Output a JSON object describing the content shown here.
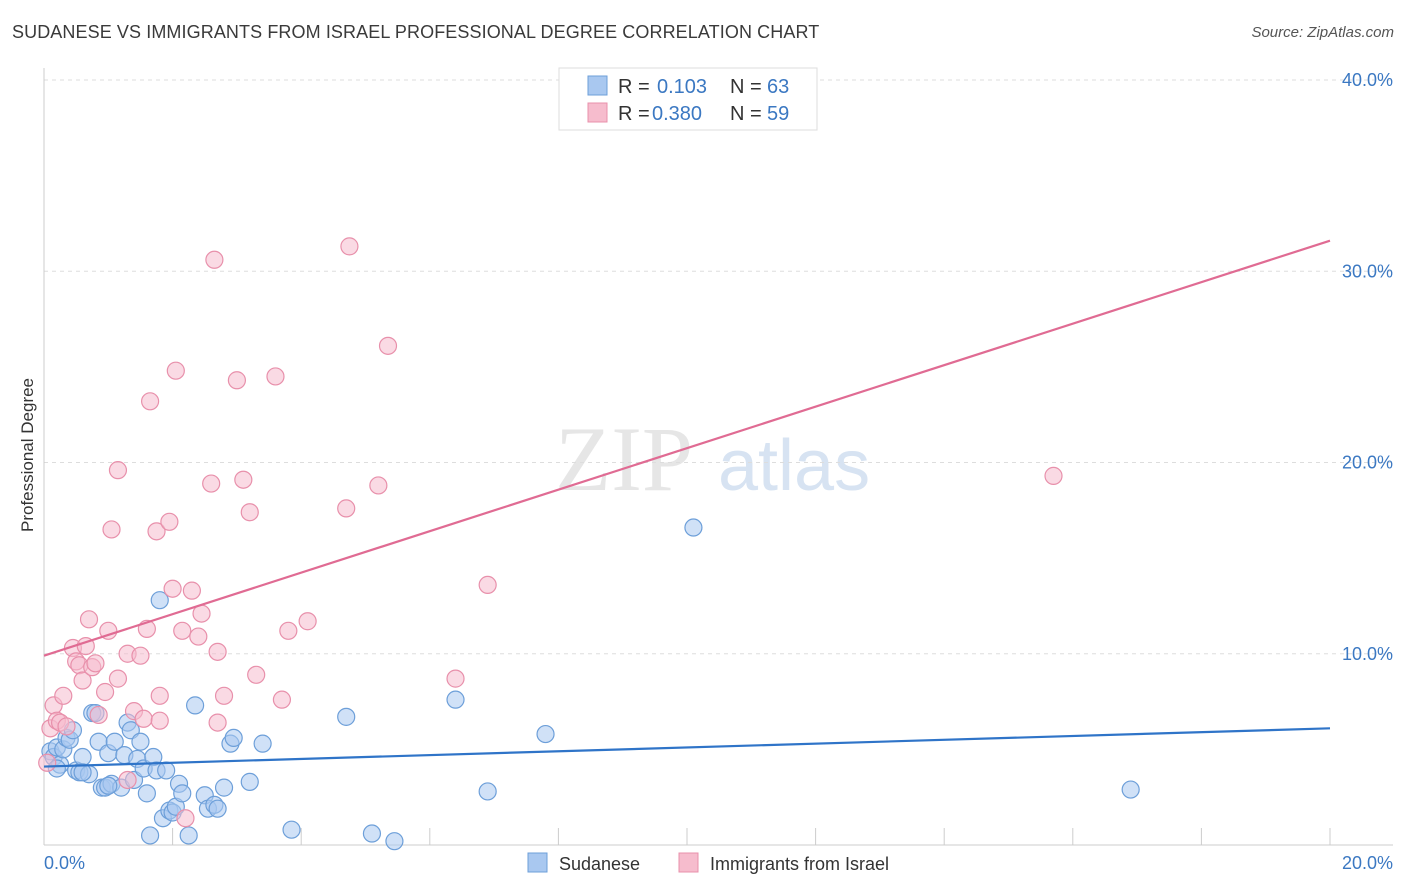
{
  "header": {
    "title": "SUDANESE VS IMMIGRANTS FROM ISRAEL PROFESSIONAL DEGREE CORRELATION CHART",
    "source": "Source: ZipAtlas.com"
  },
  "watermark": {
    "zip": "ZIP",
    "atlas": "atlas"
  },
  "legend_top": {
    "r_label": "R =",
    "n_label": "N =",
    "rows": [
      {
        "r": "0.103",
        "n": "63"
      },
      {
        "r": "0.380",
        "n": "59"
      }
    ]
  },
  "colors": {
    "blue_fill": "#a9c8f0",
    "blue_stroke": "#6d9fd9",
    "blue_line": "#2f74c8",
    "pink_fill": "#f6bccd",
    "pink_stroke": "#e890ab",
    "pink_line": "#e06b93",
    "tick_text": "#3b78c2",
    "grid": "#dddddd"
  },
  "chart_data": {
    "type": "scatter",
    "title": "SUDANESE VS IMMIGRANTS FROM ISRAEL PROFESSIONAL DEGREE CORRELATION CHART",
    "xlabel": "",
    "ylabel": "Professional Degree",
    "xlim": [
      0,
      20
    ],
    "ylim": [
      0,
      40
    ],
    "x_tick_labels": [
      "0.0%",
      "20.0%"
    ],
    "y_ticks": [
      10,
      20,
      30,
      40
    ],
    "y_tick_labels": [
      "10.0%",
      "20.0%",
      "30.0%",
      "40.0%"
    ],
    "grid": true,
    "legend_placement": "top-center",
    "series": [
      {
        "name": "Sudanese",
        "color": "#6d9fd9",
        "r": 0.103,
        "n": 63,
        "trend": {
          "x": [
            0,
            20
          ],
          "y": [
            4.1,
            6.1
          ]
        },
        "points": [
          [
            0.1,
            4.9
          ],
          [
            0.15,
            4.6
          ],
          [
            0.2,
            5.1
          ],
          [
            0.25,
            4.2
          ],
          [
            0.3,
            5.0
          ],
          [
            0.35,
            5.6
          ],
          [
            0.4,
            5.5
          ],
          [
            0.45,
            6.0
          ],
          [
            0.5,
            3.9
          ],
          [
            0.55,
            3.8
          ],
          [
            0.6,
            4.6
          ],
          [
            0.7,
            3.7
          ],
          [
            0.75,
            6.9
          ],
          [
            0.8,
            6.9
          ],
          [
            0.85,
            5.4
          ],
          [
            0.9,
            3.0
          ],
          [
            0.95,
            3.0
          ],
          [
            1.0,
            4.8
          ],
          [
            1.05,
            3.2
          ],
          [
            1.1,
            5.4
          ],
          [
            1.2,
            3.0
          ],
          [
            1.25,
            4.7
          ],
          [
            1.3,
            6.4
          ],
          [
            1.35,
            6.0
          ],
          [
            1.4,
            3.4
          ],
          [
            1.45,
            4.5
          ],
          [
            1.5,
            5.4
          ],
          [
            1.55,
            4.0
          ],
          [
            1.6,
            2.7
          ],
          [
            1.65,
            0.5
          ],
          [
            1.7,
            4.6
          ],
          [
            1.75,
            3.9
          ],
          [
            1.8,
            12.8
          ],
          [
            1.85,
            1.4
          ],
          [
            1.9,
            3.9
          ],
          [
            1.95,
            1.8
          ],
          [
            2.0,
            1.7
          ],
          [
            2.05,
            2.0
          ],
          [
            2.1,
            3.2
          ],
          [
            2.15,
            2.7
          ],
          [
            2.25,
            0.5
          ],
          [
            2.35,
            7.3
          ],
          [
            2.5,
            2.6
          ],
          [
            2.55,
            1.9
          ],
          [
            2.65,
            2.1
          ],
          [
            2.7,
            1.9
          ],
          [
            2.8,
            3.0
          ],
          [
            2.9,
            5.3
          ],
          [
            2.95,
            5.6
          ],
          [
            3.2,
            3.3
          ],
          [
            3.4,
            5.3
          ],
          [
            3.85,
            0.8
          ],
          [
            4.7,
            6.7
          ],
          [
            5.1,
            0.6
          ],
          [
            5.45,
            0.2
          ],
          [
            6.4,
            7.6
          ],
          [
            6.9,
            2.8
          ],
          [
            7.8,
            5.8
          ],
          [
            10.1,
            16.6
          ],
          [
            16.9,
            2.9
          ],
          [
            0.2,
            4.0
          ],
          [
            0.6,
            3.8
          ],
          [
            1.0,
            3.1
          ]
        ]
      },
      {
        "name": "Immigrants from Israel",
        "color": "#e890ab",
        "r": 0.38,
        "n": 59,
        "trend": {
          "x": [
            0,
            20
          ],
          "y": [
            9.9,
            31.6
          ]
        },
        "points": [
          [
            0.05,
            4.3
          ],
          [
            0.1,
            6.1
          ],
          [
            0.15,
            7.3
          ],
          [
            0.2,
            6.5
          ],
          [
            0.25,
            6.4
          ],
          [
            0.3,
            7.8
          ],
          [
            0.35,
            6.2
          ],
          [
            0.45,
            10.3
          ],
          [
            0.5,
            9.6
          ],
          [
            0.55,
            9.4
          ],
          [
            0.6,
            8.6
          ],
          [
            0.65,
            10.4
          ],
          [
            0.7,
            11.8
          ],
          [
            0.75,
            9.3
          ],
          [
            0.8,
            9.5
          ],
          [
            0.85,
            6.8
          ],
          [
            0.95,
            8.0
          ],
          [
            1.0,
            11.2
          ],
          [
            1.05,
            16.5
          ],
          [
            1.15,
            8.7
          ],
          [
            1.15,
            19.6
          ],
          [
            1.3,
            3.4
          ],
          [
            1.3,
            10.0
          ],
          [
            1.4,
            7.0
          ],
          [
            1.5,
            9.9
          ],
          [
            1.55,
            6.6
          ],
          [
            1.6,
            11.3
          ],
          [
            1.65,
            23.2
          ],
          [
            1.75,
            16.4
          ],
          [
            1.8,
            7.8
          ],
          [
            1.8,
            6.5
          ],
          [
            1.95,
            16.9
          ],
          [
            2.0,
            13.4
          ],
          [
            2.05,
            24.8
          ],
          [
            2.15,
            11.2
          ],
          [
            2.2,
            1.4
          ],
          [
            2.3,
            13.3
          ],
          [
            2.4,
            10.9
          ],
          [
            2.45,
            12.1
          ],
          [
            2.6,
            18.9
          ],
          [
            2.65,
            30.6
          ],
          [
            2.7,
            10.1
          ],
          [
            2.7,
            6.4
          ],
          [
            2.8,
            7.8
          ],
          [
            3.0,
            24.3
          ],
          [
            3.1,
            19.1
          ],
          [
            3.2,
            17.4
          ],
          [
            3.3,
            8.9
          ],
          [
            3.6,
            24.5
          ],
          [
            3.7,
            7.6
          ],
          [
            3.8,
            11.2
          ],
          [
            4.1,
            11.7
          ],
          [
            4.7,
            17.6
          ],
          [
            4.75,
            31.3
          ],
          [
            5.2,
            18.8
          ],
          [
            5.35,
            26.1
          ],
          [
            6.4,
            8.7
          ],
          [
            6.9,
            13.6
          ],
          [
            15.7,
            19.3
          ]
        ]
      }
    ]
  },
  "legend_bottom": [
    "Sudanese",
    "Immigrants from Israel"
  ]
}
